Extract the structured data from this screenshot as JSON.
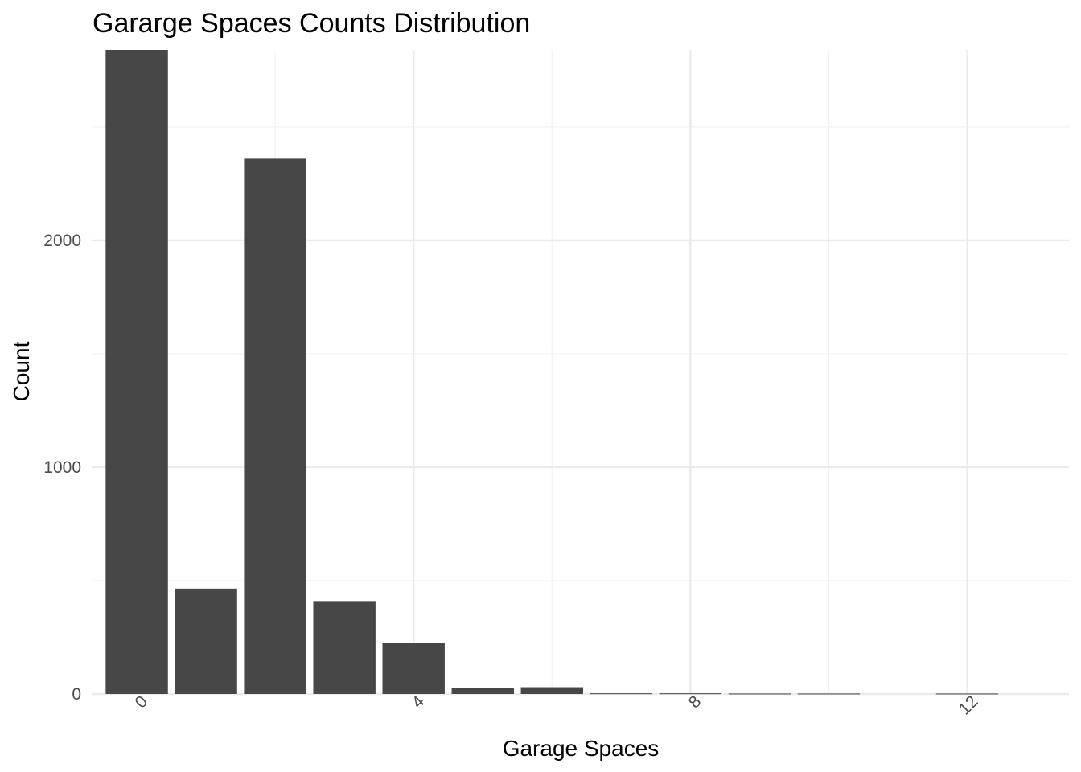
{
  "chart_data": {
    "type": "bar",
    "title": "Gararge Spaces Counts Distribution",
    "xlabel": "Garage Spaces",
    "ylabel": "Count",
    "x": [
      0,
      1,
      2,
      3,
      4,
      5,
      6,
      7,
      8,
      9,
      10,
      12
    ],
    "values": [
      2840,
      465,
      2360,
      410,
      225,
      25,
      30,
      3,
      3,
      2,
      2,
      2
    ],
    "xlim": [
      -0.64,
      13.47
    ],
    "ylim": [
      0,
      2840
    ],
    "x_ticks": [
      "0",
      "4",
      "8",
      "12"
    ],
    "y_ticks": [
      "0",
      "1000",
      "2000"
    ],
    "x_tick_rotation": -45,
    "grid": true,
    "legend": "none",
    "bar_color": "#474747",
    "grid_major_color": "#ebebeb",
    "grid_minor_color": "#f2f2f2"
  }
}
